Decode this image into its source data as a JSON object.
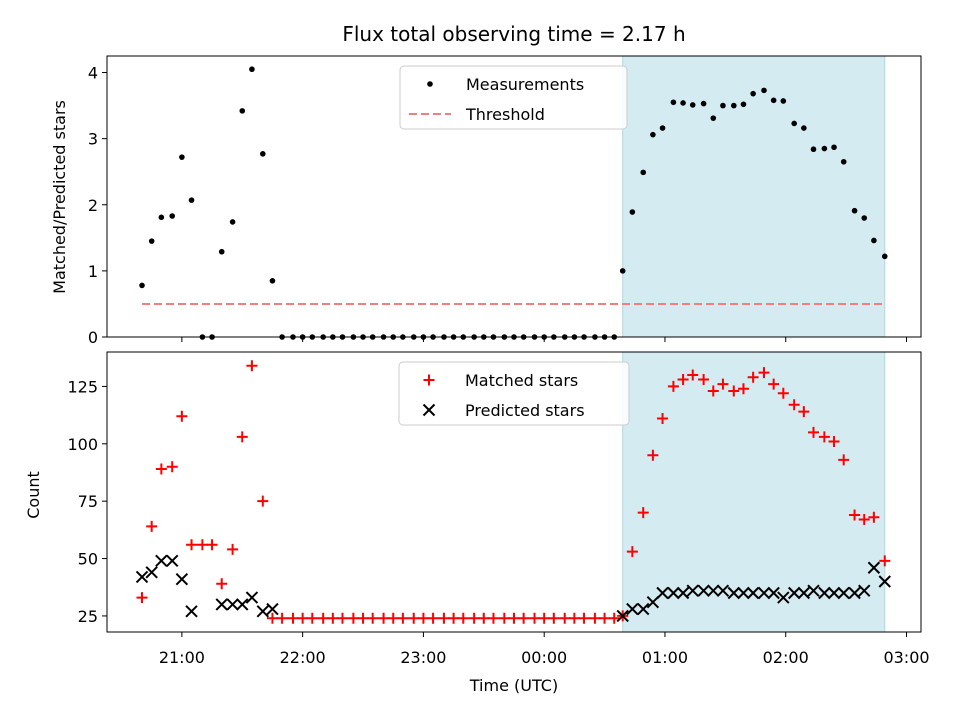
{
  "chart_data": {
    "title": "Flux total observing time = 2.17 h",
    "xlabel": "Time (UTC)",
    "x_unit": "hours (21 = 21:00 UTC, 25 = 01:00 UTC next day)",
    "x_ticks": [
      {
        "value": 21,
        "label": "21:00"
      },
      {
        "value": 22,
        "label": "22:00"
      },
      {
        "value": 23,
        "label": "23:00"
      },
      {
        "value": 24,
        "label": "00:00"
      },
      {
        "value": 25,
        "label": "01:00"
      },
      {
        "value": 26,
        "label": "02:00"
      },
      {
        "value": 27,
        "label": "03:00"
      }
    ],
    "xlim": [
      20.38,
      27.12
    ],
    "highlight_span": {
      "x0": 24.65,
      "x1": 26.82,
      "color": "#d4ebf1"
    },
    "panels": [
      {
        "type": "scatter",
        "ylabel": "Matched/Predicted stars",
        "ylim": [
          0,
          4.25
        ],
        "yticks": [
          0,
          1,
          2,
          3,
          4
        ],
        "legend_position": "top-center",
        "series": [
          {
            "name": "Measurements",
            "marker": "dot",
            "color": "#000000",
            "x": [
              20.67,
              20.75,
              20.83,
              20.92,
              21.0,
              21.08,
              21.17,
              21.25,
              21.33,
              21.42,
              21.5,
              21.58,
              21.67,
              21.75,
              21.83,
              21.92,
              22.0,
              22.08,
              22.17,
              22.25,
              22.33,
              22.42,
              22.5,
              22.58,
              22.67,
              22.75,
              22.83,
              22.92,
              23.0,
              23.08,
              23.17,
              23.25,
              23.33,
              23.42,
              23.5,
              23.58,
              23.67,
              23.75,
              23.83,
              23.92,
              24.0,
              24.08,
              24.17,
              24.25,
              24.33,
              24.42,
              24.5,
              24.58,
              24.65,
              24.73,
              24.82,
              24.9,
              24.98,
              25.07,
              25.15,
              25.23,
              25.32,
              25.4,
              25.48,
              25.57,
              25.65,
              25.73,
              25.82,
              25.9,
              25.98,
              26.07,
              26.15,
              26.23,
              26.32,
              26.4,
              26.48,
              26.57,
              26.65,
              26.73,
              26.82
            ],
            "y": [
              0.78,
              1.45,
              1.81,
              1.83,
              2.72,
              2.07,
              0,
              0,
              1.29,
              1.74,
              3.42,
              4.05,
              2.77,
              0.85,
              0,
              0,
              0,
              0,
              0,
              0,
              0,
              0,
              0,
              0,
              0,
              0,
              0,
              0,
              0,
              0,
              0,
              0,
              0,
              0,
              0,
              0,
              0,
              0,
              0,
              0,
              0,
              0,
              0,
              0,
              0,
              0,
              0,
              0,
              1.0,
              1.89,
              2.49,
              3.06,
              3.16,
              3.55,
              3.54,
              3.51,
              3.53,
              3.31,
              3.5,
              3.5,
              3.52,
              3.68,
              3.73,
              3.58,
              3.57,
              3.23,
              3.16,
              2.84,
              2.85,
              2.87,
              2.65,
              1.91,
              1.8,
              1.46,
              1.22
            ]
          },
          {
            "name": "Threshold",
            "marker": "dashed-line",
            "color": "#f08080",
            "x": [
              20.67,
              26.82
            ],
            "y": [
              0.5,
              0.5
            ]
          }
        ]
      },
      {
        "type": "scatter",
        "ylabel": "Count",
        "ylim": [
          18,
          140
        ],
        "yticks": [
          25,
          50,
          75,
          100,
          125
        ],
        "legend_position": "top-center",
        "series": [
          {
            "name": "Matched stars",
            "marker": "plus",
            "color": "#ff0000",
            "x": [
              20.67,
              20.75,
              20.83,
              20.92,
              21.0,
              21.08,
              21.17,
              21.25,
              21.33,
              21.42,
              21.5,
              21.58,
              21.67,
              21.75,
              21.83,
              21.92,
              22.0,
              22.08,
              22.17,
              22.25,
              22.33,
              22.42,
              22.5,
              22.58,
              22.67,
              22.75,
              22.83,
              22.92,
              23.0,
              23.08,
              23.17,
              23.25,
              23.33,
              23.42,
              23.5,
              23.58,
              23.67,
              23.75,
              23.83,
              23.92,
              24.0,
              24.08,
              24.17,
              24.25,
              24.33,
              24.42,
              24.5,
              24.58,
              24.65,
              24.73,
              24.82,
              24.9,
              24.98,
              25.07,
              25.15,
              25.23,
              25.32,
              25.4,
              25.48,
              25.57,
              25.65,
              25.73,
              25.82,
              25.9,
              25.98,
              26.07,
              26.15,
              26.23,
              26.32,
              26.4,
              26.48,
              26.57,
              26.65,
              26.73,
              26.82
            ],
            "y": [
              33,
              64,
              89,
              90,
              112,
              56,
              56,
              56,
              39,
              54,
              103,
              134,
              75,
              24,
              24,
              24,
              24,
              24,
              24,
              24,
              24,
              24,
              24,
              24,
              24,
              24,
              24,
              24,
              24,
              24,
              24,
              24,
              24,
              24,
              24,
              24,
              24,
              24,
              24,
              24,
              24,
              24,
              24,
              24,
              24,
              24,
              24,
              24,
              25,
              53,
              70,
              95,
              111,
              125,
              128,
              130,
              128,
              123,
              126,
              123,
              124,
              129,
              131,
              126,
              122,
              117,
              114,
              105,
              103,
              101,
              93,
              69,
              67,
              68,
              49
            ]
          },
          {
            "name": "Predicted stars",
            "marker": "x",
            "color": "#000000",
            "x": [
              20.67,
              20.75,
              20.83,
              20.92,
              21.0,
              21.08,
              21.33,
              21.42,
              21.5,
              21.58,
              21.67,
              21.75,
              24.65,
              24.73,
              24.82,
              24.9,
              24.98,
              25.07,
              25.15,
              25.23,
              25.32,
              25.4,
              25.48,
              25.57,
              25.65,
              25.73,
              25.82,
              25.9,
              25.98,
              26.07,
              26.15,
              26.23,
              26.32,
              26.4,
              26.48,
              26.57,
              26.65,
              26.73,
              26.82
            ],
            "y": [
              42,
              44,
              49,
              49,
              41,
              27,
              30,
              30,
              30,
              33,
              27,
              28,
              25,
              28,
              28,
              31,
              35,
              35,
              35,
              36,
              36,
              36,
              36,
              35,
              35,
              35,
              35,
              35,
              33,
              35,
              35,
              36,
              35,
              35,
              35,
              35,
              36,
              46,
              40
            ]
          }
        ]
      }
    ]
  }
}
